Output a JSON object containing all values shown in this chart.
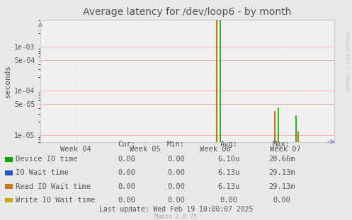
{
  "title": "Average latency for /dev/loop6 - by month",
  "ylabel": "seconds",
  "background_color": "#e8e8e8",
  "plot_bg_color": "#f0f0f0",
  "grid_color_h": "#ff9999",
  "grid_color_v": "#dddddd",
  "x_labels": [
    "Week 04",
    "Week 05",
    "Week 06",
    "Week 07"
  ],
  "x_tick_positions": [
    0,
    1,
    2,
    3
  ],
  "ylim_min": 7e-06,
  "ylim_max": 0.004,
  "xlim_min": -0.5,
  "xlim_max": 3.7,
  "y_ticks": [
    1e-05,
    5e-05,
    0.0001,
    0.0005,
    0.001
  ],
  "y_labels": [
    "1e-05",
    "5e-05",
    "1e-04",
    "5e-04",
    "1e-03"
  ],
  "spikes": [
    {
      "x": 2.02,
      "ybot": 7e-06,
      "ytop": 0.029,
      "color": "#cc7700",
      "lw": 1.5
    },
    {
      "x": 2.07,
      "ybot": 7e-06,
      "ytop": 0.02866,
      "color": "#00aa00",
      "lw": 1.2
    },
    {
      "x": 2.85,
      "ybot": 7e-06,
      "ytop": 3.5e-05,
      "color": "#cc7700",
      "lw": 1.5
    },
    {
      "x": 2.9,
      "ybot": 7e-06,
      "ytop": 4.2e-05,
      "color": "#00aa00",
      "lw": 1.2
    },
    {
      "x": 3.15,
      "ybot": 7e-06,
      "ytop": 2.8e-05,
      "color": "#00aa00",
      "lw": 1.2
    },
    {
      "x": 3.18,
      "ybot": 7e-06,
      "ytop": 1.2e-05,
      "color": "#cc7700",
      "lw": 1.5
    }
  ],
  "legend_colors": [
    "#00aa00",
    "#2255cc",
    "#cc7700",
    "#ccaa00"
  ],
  "legend_labels": [
    "Device IO time",
    "IO Wait time",
    "Read IO Wait time",
    "Write IO Wait time"
  ],
  "table_headers": [
    "Cur:",
    "Min:",
    "Avg:",
    "Max:"
  ],
  "table_values": [
    [
      "0.00",
      "0.00",
      "6.10u",
      "28.66m"
    ],
    [
      "0.00",
      "0.00",
      "6.13u",
      "29.13m"
    ],
    [
      "0.00",
      "0.00",
      "6.13u",
      "29.13m"
    ],
    [
      "0.00",
      "0.00",
      "0.00",
      "0.00"
    ]
  ],
  "footer": "Last update: Wed Feb 19 10:00:07 2025",
  "munin_label": "Munin 2.0.75",
  "rrdtool_label": "RRDTOOL / TOBI OETIKER",
  "arrow_color": "#9999cc",
  "axis_color": "#9999cc",
  "spine_color": "#cccccc",
  "text_color": "#555555",
  "title_color": "#555555"
}
